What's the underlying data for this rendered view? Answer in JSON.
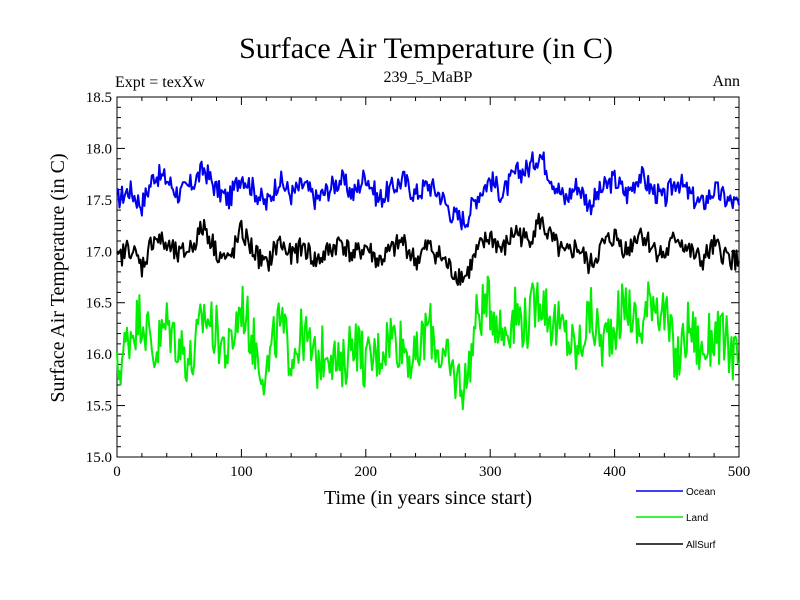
{
  "chart_data": {
    "type": "line",
    "title": "Surface Air Temperature (in C)",
    "subtitle_left": "Expt = texXw",
    "subtitle_center": "239_5_MaBP",
    "subtitle_right": "Ann",
    "xlabel": "Time (in years since start)",
    "ylabel": "Surface Air Temperature (in C)",
    "xlim": [
      0,
      500
    ],
    "ylim": [
      15.0,
      18.5
    ],
    "xticks": [
      0,
      100,
      200,
      300,
      400,
      500
    ],
    "xtick_labels": [
      "0",
      "100",
      "200",
      "300",
      "400",
      "500"
    ],
    "yticks": [
      15.0,
      15.5,
      16.0,
      16.5,
      17.0,
      17.5,
      18.0,
      18.5
    ],
    "ytick_labels": [
      "15.0",
      "15.5",
      "16.0",
      "16.5",
      "17.0",
      "17.5",
      "18.0",
      "18.5"
    ],
    "legend_position": "bottom-right, below plot",
    "series": [
      {
        "name": "Ocean",
        "color": "#0000ee",
        "x": [
          0,
          10,
          20,
          30,
          40,
          50,
          60,
          70,
          80,
          90,
          100,
          110,
          120,
          130,
          140,
          150,
          160,
          170,
          180,
          190,
          200,
          210,
          220,
          230,
          240,
          250,
          260,
          270,
          280,
          290,
          300,
          310,
          320,
          330,
          340,
          350,
          360,
          370,
          380,
          390,
          400,
          410,
          420,
          430,
          440,
          450,
          460,
          470,
          480,
          490,
          500
        ],
        "values": [
          17.5,
          17.6,
          17.45,
          17.75,
          17.7,
          17.55,
          17.65,
          17.8,
          17.6,
          17.5,
          17.75,
          17.6,
          17.45,
          17.7,
          17.55,
          17.65,
          17.5,
          17.6,
          17.7,
          17.55,
          17.75,
          17.5,
          17.6,
          17.7,
          17.55,
          17.65,
          17.55,
          17.35,
          17.3,
          17.55,
          17.7,
          17.55,
          17.75,
          17.8,
          17.95,
          17.7,
          17.5,
          17.65,
          17.45,
          17.6,
          17.7,
          17.55,
          17.75,
          17.6,
          17.5,
          17.7,
          17.55,
          17.45,
          17.6,
          17.5,
          17.45
        ]
      },
      {
        "name": "Land",
        "color": "#00ee00",
        "x": [
          0,
          10,
          20,
          30,
          40,
          50,
          60,
          70,
          80,
          90,
          100,
          110,
          120,
          130,
          140,
          150,
          160,
          170,
          180,
          190,
          200,
          210,
          220,
          230,
          240,
          250,
          260,
          270,
          280,
          290,
          300,
          310,
          320,
          330,
          340,
          350,
          360,
          370,
          380,
          390,
          400,
          410,
          420,
          430,
          440,
          450,
          460,
          470,
          480,
          490,
          500
        ],
        "values": [
          15.8,
          16.2,
          16.4,
          16.0,
          16.3,
          16.1,
          15.9,
          16.4,
          16.2,
          16.0,
          16.5,
          16.1,
          15.8,
          16.3,
          16.0,
          16.2,
          15.9,
          16.1,
          15.8,
          16.2,
          15.9,
          16.0,
          16.2,
          16.1,
          15.9,
          16.3,
          16.0,
          15.8,
          15.7,
          16.4,
          16.5,
          16.2,
          16.4,
          16.3,
          16.6,
          16.3,
          16.2,
          16.0,
          16.4,
          16.1,
          16.3,
          16.5,
          16.2,
          16.6,
          16.4,
          15.9,
          16.3,
          16.0,
          16.2,
          16.1,
          15.9
        ]
      },
      {
        "name": "AllSurf",
        "color": "#000000",
        "x": [
          0,
          10,
          20,
          30,
          40,
          50,
          60,
          70,
          80,
          90,
          100,
          110,
          120,
          130,
          140,
          150,
          160,
          170,
          180,
          190,
          200,
          210,
          220,
          230,
          240,
          250,
          260,
          270,
          280,
          290,
          300,
          310,
          320,
          330,
          340,
          350,
          360,
          370,
          380,
          390,
          400,
          410,
          420,
          430,
          440,
          450,
          460,
          470,
          480,
          490,
          500
        ],
        "values": [
          16.9,
          17.05,
          16.85,
          17.15,
          17.05,
          16.95,
          17.05,
          17.25,
          17.0,
          16.9,
          17.2,
          17.0,
          16.85,
          17.1,
          16.95,
          17.05,
          16.9,
          17.0,
          17.1,
          16.95,
          17.05,
          16.9,
          17.0,
          17.1,
          16.9,
          17.05,
          16.95,
          16.8,
          16.75,
          17.0,
          17.15,
          17.0,
          17.2,
          17.1,
          17.3,
          17.1,
          16.95,
          17.05,
          16.85,
          17.05,
          17.15,
          17.0,
          17.2,
          17.05,
          16.95,
          17.15,
          17.0,
          16.9,
          17.05,
          16.95,
          16.9
        ]
      }
    ]
  }
}
